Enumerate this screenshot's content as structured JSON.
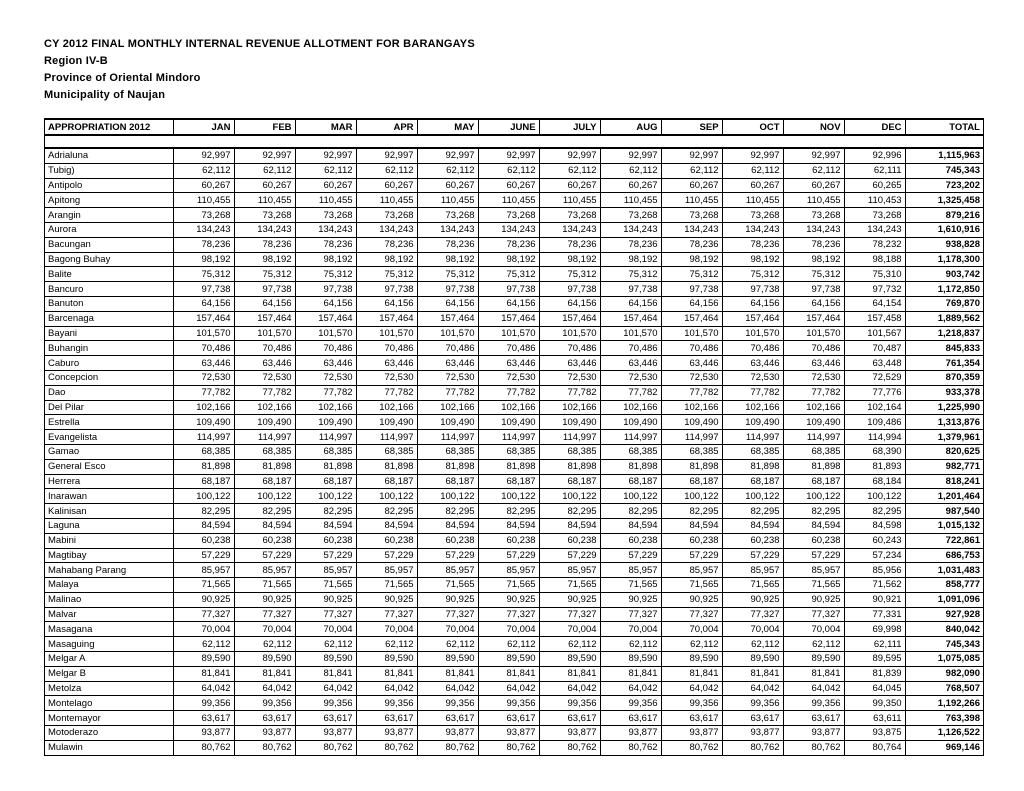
{
  "title1": "CY 2012 FINAL MONTHLY INTERNAL REVENUE ALLOTMENT FOR BARANGAYS",
  "title2": "Region IV-B",
  "title3": "Province of Oriental Mindoro",
  "title4": "Municipality of Naujan",
  "columns": [
    "APPROPRIATION 2012",
    "JAN",
    "FEB",
    "MAR",
    "APR",
    "MAY",
    "JUNE",
    "JULY",
    "AUG",
    "SEP",
    "OCT",
    "NOV",
    "DEC",
    "TOTAL"
  ],
  "rows": [
    {
      "name": "Adrialuna",
      "m": [
        "92,997",
        "92,997",
        "92,997",
        "92,997",
        "92,997",
        "92,997",
        "92,997",
        "92,997",
        "92,997",
        "92,997",
        "92,997",
        "92,996"
      ],
      "t": "1,115,963"
    },
    {
      "name": "Tubig)",
      "m": [
        "62,112",
        "62,112",
        "62,112",
        "62,112",
        "62,112",
        "62,112",
        "62,112",
        "62,112",
        "62,112",
        "62,112",
        "62,112",
        "62,111"
      ],
      "t": "745,343"
    },
    {
      "name": "Antipolo",
      "m": [
        "60,267",
        "60,267",
        "60,267",
        "60,267",
        "60,267",
        "60,267",
        "60,267",
        "60,267",
        "60,267",
        "60,267",
        "60,267",
        "60,265"
      ],
      "t": "723,202"
    },
    {
      "name": "Apitong",
      "m": [
        "110,455",
        "110,455",
        "110,455",
        "110,455",
        "110,455",
        "110,455",
        "110,455",
        "110,455",
        "110,455",
        "110,455",
        "110,455",
        "110,453"
      ],
      "t": "1,325,458"
    },
    {
      "name": "Arangin",
      "m": [
        "73,268",
        "73,268",
        "73,268",
        "73,268",
        "73,268",
        "73,268",
        "73,268",
        "73,268",
        "73,268",
        "73,268",
        "73,268",
        "73,268"
      ],
      "t": "879,216"
    },
    {
      "name": "Aurora",
      "m": [
        "134,243",
        "134,243",
        "134,243",
        "134,243",
        "134,243",
        "134,243",
        "134,243",
        "134,243",
        "134,243",
        "134,243",
        "134,243",
        "134,243"
      ],
      "t": "1,610,916"
    },
    {
      "name": "Bacungan",
      "m": [
        "78,236",
        "78,236",
        "78,236",
        "78,236",
        "78,236",
        "78,236",
        "78,236",
        "78,236",
        "78,236",
        "78,236",
        "78,236",
        "78,232"
      ],
      "t": "938,828"
    },
    {
      "name": "Bagong Buhay",
      "m": [
        "98,192",
        "98,192",
        "98,192",
        "98,192",
        "98,192",
        "98,192",
        "98,192",
        "98,192",
        "98,192",
        "98,192",
        "98,192",
        "98,188"
      ],
      "t": "1,178,300"
    },
    {
      "name": "Balite",
      "m": [
        "75,312",
        "75,312",
        "75,312",
        "75,312",
        "75,312",
        "75,312",
        "75,312",
        "75,312",
        "75,312",
        "75,312",
        "75,312",
        "75,310"
      ],
      "t": "903,742"
    },
    {
      "name": "Bancuro",
      "m": [
        "97,738",
        "97,738",
        "97,738",
        "97,738",
        "97,738",
        "97,738",
        "97,738",
        "97,738",
        "97,738",
        "97,738",
        "97,738",
        "97,732"
      ],
      "t": "1,172,850"
    },
    {
      "name": "Banuton",
      "m": [
        "64,156",
        "64,156",
        "64,156",
        "64,156",
        "64,156",
        "64,156",
        "64,156",
        "64,156",
        "64,156",
        "64,156",
        "64,156",
        "64,154"
      ],
      "t": "769,870"
    },
    {
      "name": "Barcenaga",
      "m": [
        "157,464",
        "157,464",
        "157,464",
        "157,464",
        "157,464",
        "157,464",
        "157,464",
        "157,464",
        "157,464",
        "157,464",
        "157,464",
        "157,458"
      ],
      "t": "1,889,562"
    },
    {
      "name": "Bayani",
      "m": [
        "101,570",
        "101,570",
        "101,570",
        "101,570",
        "101,570",
        "101,570",
        "101,570",
        "101,570",
        "101,570",
        "101,570",
        "101,570",
        "101,567"
      ],
      "t": "1,218,837"
    },
    {
      "name": "Buhangin",
      "m": [
        "70,486",
        "70,486",
        "70,486",
        "70,486",
        "70,486",
        "70,486",
        "70,486",
        "70,486",
        "70,486",
        "70,486",
        "70,486",
        "70,487"
      ],
      "t": "845,833"
    },
    {
      "name": "Caburo",
      "m": [
        "63,446",
        "63,446",
        "63,446",
        "63,446",
        "63,446",
        "63,446",
        "63,446",
        "63,446",
        "63,446",
        "63,446",
        "63,446",
        "63,448"
      ],
      "t": "761,354"
    },
    {
      "name": "Concepcion",
      "m": [
        "72,530",
        "72,530",
        "72,530",
        "72,530",
        "72,530",
        "72,530",
        "72,530",
        "72,530",
        "72,530",
        "72,530",
        "72,530",
        "72,529"
      ],
      "t": "870,359"
    },
    {
      "name": "Dao",
      "m": [
        "77,782",
        "77,782",
        "77,782",
        "77,782",
        "77,782",
        "77,782",
        "77,782",
        "77,782",
        "77,782",
        "77,782",
        "77,782",
        "77,776"
      ],
      "t": "933,378"
    },
    {
      "name": "Del Pilar",
      "m": [
        "102,166",
        "102,166",
        "102,166",
        "102,166",
        "102,166",
        "102,166",
        "102,166",
        "102,166",
        "102,166",
        "102,166",
        "102,166",
        "102,164"
      ],
      "t": "1,225,990"
    },
    {
      "name": "Estrella",
      "m": [
        "109,490",
        "109,490",
        "109,490",
        "109,490",
        "109,490",
        "109,490",
        "109,490",
        "109,490",
        "109,490",
        "109,490",
        "109,490",
        "109,486"
      ],
      "t": "1,313,876"
    },
    {
      "name": "Evangelista",
      "m": [
        "114,997",
        "114,997",
        "114,997",
        "114,997",
        "114,997",
        "114,997",
        "114,997",
        "114,997",
        "114,997",
        "114,997",
        "114,997",
        "114,994"
      ],
      "t": "1,379,961"
    },
    {
      "name": "Gamao",
      "m": [
        "68,385",
        "68,385",
        "68,385",
        "68,385",
        "68,385",
        "68,385",
        "68,385",
        "68,385",
        "68,385",
        "68,385",
        "68,385",
        "68,390"
      ],
      "t": "820,625"
    },
    {
      "name": "General Esco",
      "m": [
        "81,898",
        "81,898",
        "81,898",
        "81,898",
        "81,898",
        "81,898",
        "81,898",
        "81,898",
        "81,898",
        "81,898",
        "81,898",
        "81,893"
      ],
      "t": "982,771"
    },
    {
      "name": "Herrera",
      "m": [
        "68,187",
        "68,187",
        "68,187",
        "68,187",
        "68,187",
        "68,187",
        "68,187",
        "68,187",
        "68,187",
        "68,187",
        "68,187",
        "68,184"
      ],
      "t": "818,241"
    },
    {
      "name": "Inarawan",
      "m": [
        "100,122",
        "100,122",
        "100,122",
        "100,122",
        "100,122",
        "100,122",
        "100,122",
        "100,122",
        "100,122",
        "100,122",
        "100,122",
        "100,122"
      ],
      "t": "1,201,464"
    },
    {
      "name": "Kalinisan",
      "m": [
        "82,295",
        "82,295",
        "82,295",
        "82,295",
        "82,295",
        "82,295",
        "82,295",
        "82,295",
        "82,295",
        "82,295",
        "82,295",
        "82,295"
      ],
      "t": "987,540"
    },
    {
      "name": "Laguna",
      "m": [
        "84,594",
        "84,594",
        "84,594",
        "84,594",
        "84,594",
        "84,594",
        "84,594",
        "84,594",
        "84,594",
        "84,594",
        "84,594",
        "84,598"
      ],
      "t": "1,015,132"
    },
    {
      "name": "Mabini",
      "m": [
        "60,238",
        "60,238",
        "60,238",
        "60,238",
        "60,238",
        "60,238",
        "60,238",
        "60,238",
        "60,238",
        "60,238",
        "60,238",
        "60,243"
      ],
      "t": "722,861"
    },
    {
      "name": "Magtibay",
      "m": [
        "57,229",
        "57,229",
        "57,229",
        "57,229",
        "57,229",
        "57,229",
        "57,229",
        "57,229",
        "57,229",
        "57,229",
        "57,229",
        "57,234"
      ],
      "t": "686,753"
    },
    {
      "name": "Mahabang Parang",
      "m": [
        "85,957",
        "85,957",
        "85,957",
        "85,957",
        "85,957",
        "85,957",
        "85,957",
        "85,957",
        "85,957",
        "85,957",
        "85,957",
        "85,956"
      ],
      "t": "1,031,483"
    },
    {
      "name": "Malaya",
      "m": [
        "71,565",
        "71,565",
        "71,565",
        "71,565",
        "71,565",
        "71,565",
        "71,565",
        "71,565",
        "71,565",
        "71,565",
        "71,565",
        "71,562"
      ],
      "t": "858,777"
    },
    {
      "name": "Malinao",
      "m": [
        "90,925",
        "90,925",
        "90,925",
        "90,925",
        "90,925",
        "90,925",
        "90,925",
        "90,925",
        "90,925",
        "90,925",
        "90,925",
        "90,921"
      ],
      "t": "1,091,096"
    },
    {
      "name": "Malvar",
      "m": [
        "77,327",
        "77,327",
        "77,327",
        "77,327",
        "77,327",
        "77,327",
        "77,327",
        "77,327",
        "77,327",
        "77,327",
        "77,327",
        "77,331"
      ],
      "t": "927,928"
    },
    {
      "name": "Masagana",
      "m": [
        "70,004",
        "70,004",
        "70,004",
        "70,004",
        "70,004",
        "70,004",
        "70,004",
        "70,004",
        "70,004",
        "70,004",
        "70,004",
        "69,998"
      ],
      "t": "840,042"
    },
    {
      "name": "Masaguing",
      "m": [
        "62,112",
        "62,112",
        "62,112",
        "62,112",
        "62,112",
        "62,112",
        "62,112",
        "62,112",
        "62,112",
        "62,112",
        "62,112",
        "62,111"
      ],
      "t": "745,343"
    },
    {
      "name": "Melgar A",
      "m": [
        "89,590",
        "89,590",
        "89,590",
        "89,590",
        "89,590",
        "89,590",
        "89,590",
        "89,590",
        "89,590",
        "89,590",
        "89,590",
        "89,595"
      ],
      "t": "1,075,085"
    },
    {
      "name": "Melgar B",
      "m": [
        "81,841",
        "81,841",
        "81,841",
        "81,841",
        "81,841",
        "81,841",
        "81,841",
        "81,841",
        "81,841",
        "81,841",
        "81,841",
        "81,839"
      ],
      "t": "982,090"
    },
    {
      "name": "Metolza",
      "m": [
        "64,042",
        "64,042",
        "64,042",
        "64,042",
        "64,042",
        "64,042",
        "64,042",
        "64,042",
        "64,042",
        "64,042",
        "64,042",
        "64,045"
      ],
      "t": "768,507"
    },
    {
      "name": "Montelago",
      "m": [
        "99,356",
        "99,356",
        "99,356",
        "99,356",
        "99,356",
        "99,356",
        "99,356",
        "99,356",
        "99,356",
        "99,356",
        "99,356",
        "99,350"
      ],
      "t": "1,192,266"
    },
    {
      "name": "Montemayor",
      "m": [
        "63,617",
        "63,617",
        "63,617",
        "63,617",
        "63,617",
        "63,617",
        "63,617",
        "63,617",
        "63,617",
        "63,617",
        "63,617",
        "63,611"
      ],
      "t": "763,398"
    },
    {
      "name": "Motoderazo",
      "m": [
        "93,877",
        "93,877",
        "93,877",
        "93,877",
        "93,877",
        "93,877",
        "93,877",
        "93,877",
        "93,877",
        "93,877",
        "93,877",
        "93,875"
      ],
      "t": "1,126,522"
    },
    {
      "name": "Mulawin",
      "m": [
        "80,762",
        "80,762",
        "80,762",
        "80,762",
        "80,762",
        "80,762",
        "80,762",
        "80,762",
        "80,762",
        "80,762",
        "80,762",
        "80,764"
      ],
      "t": "969,146"
    }
  ]
}
